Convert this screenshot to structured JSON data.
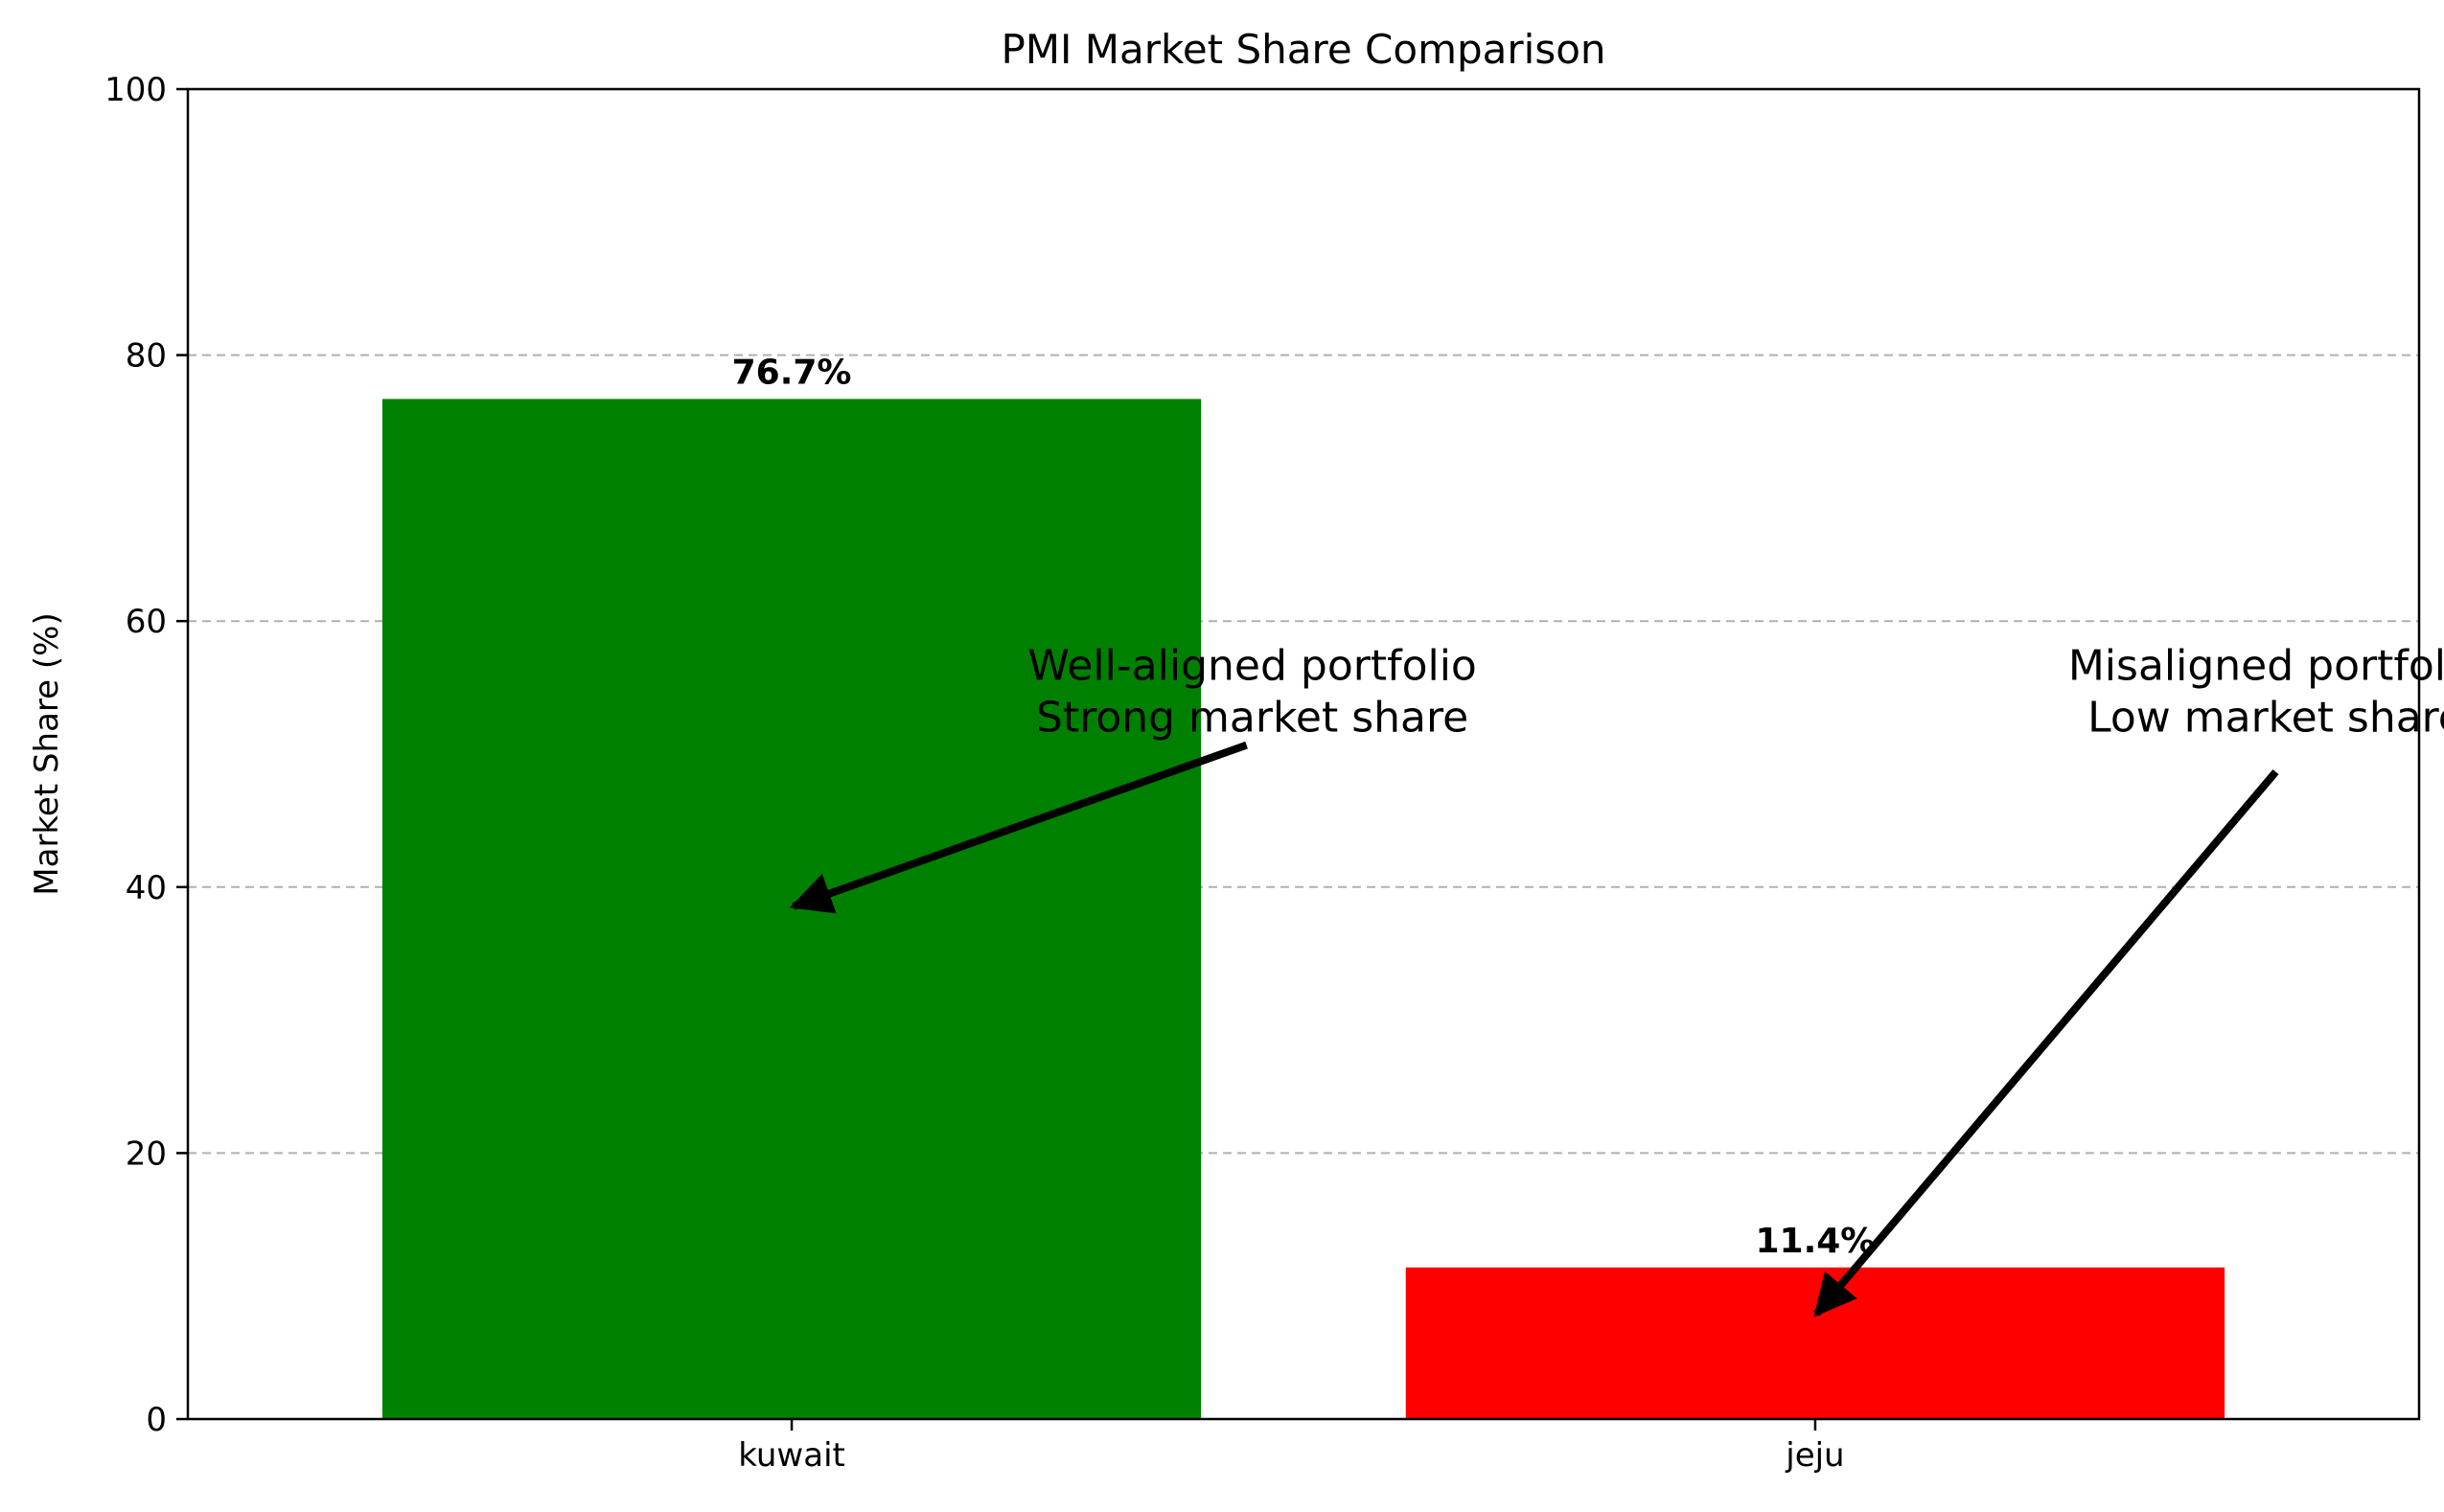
{
  "chart_data": {
    "type": "bar",
    "title": "PMI Market Share Comparison",
    "xlabel": "",
    "ylabel": "Market Share (%)",
    "categories": [
      "kuwait",
      "jeju"
    ],
    "values": [
      76.7,
      11.4
    ],
    "value_labels": [
      "76.7%",
      "11.4%"
    ],
    "colors": [
      "#008000",
      "#ff0000"
    ],
    "ylim": [
      0,
      100
    ],
    "yticks": [
      0,
      20,
      40,
      60,
      80,
      100
    ],
    "ytick_labels": [
      "0",
      "20",
      "40",
      "60",
      "80",
      "100"
    ],
    "grid": "y-dashed",
    "annotations": [
      {
        "lines": [
          "Well-aligned portfolio",
          "Strong market share"
        ],
        "text_at": {
          "x": 0.45,
          "y": 55
        },
        "arrow_to": {
          "x": 0.0,
          "y": 38.5
        }
      },
      {
        "lines": [
          "Misaligned portfolio",
          "Low market share"
        ],
        "text_at": {
          "x": 1.45,
          "y": 55
        },
        "arrow_to": {
          "x": 1.0,
          "y": 7.8
        }
      }
    ]
  }
}
